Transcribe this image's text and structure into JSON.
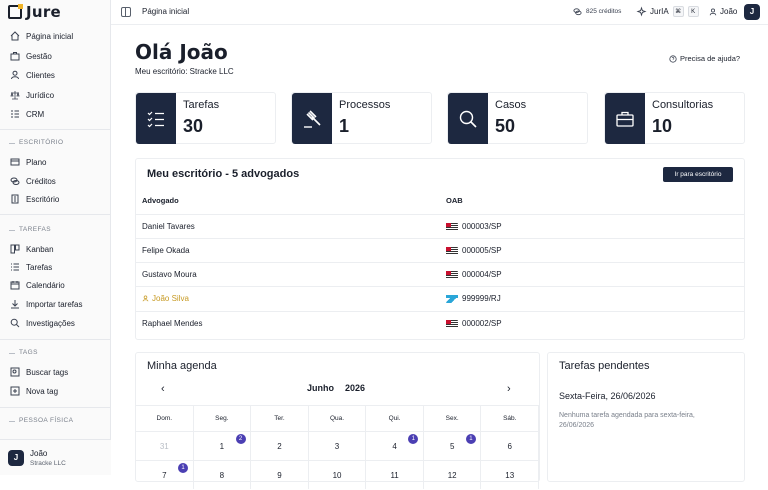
{
  "app": {
    "name": "Jure"
  },
  "sidebar": {
    "main": [
      {
        "label": "Página inicial",
        "icon": "home-icon"
      },
      {
        "label": "Gestão",
        "icon": "briefcase-icon"
      },
      {
        "label": "Clientes",
        "icon": "user-icon"
      },
      {
        "label": "Jurídico",
        "icon": "scale-icon"
      },
      {
        "label": "CRM",
        "icon": "crm-list-icon"
      }
    ],
    "sections": {
      "escritorio": "ESCRITÓRIO",
      "tarefas": "TAREFAS",
      "tags": "TAGS",
      "pessoa_fisica": "PESSOA FÍSICA"
    },
    "escritorio": [
      {
        "label": "Plano",
        "icon": "card-icon"
      },
      {
        "label": "Créditos",
        "icon": "coins-icon"
      },
      {
        "label": "Escritório",
        "icon": "building-icon"
      }
    ],
    "tarefas": [
      {
        "label": "Kanban",
        "icon": "kanban-icon"
      },
      {
        "label": "Tarefas",
        "icon": "list-icon"
      },
      {
        "label": "Calendário",
        "icon": "calendar-icon"
      },
      {
        "label": "Importar tarefas",
        "icon": "download-icon"
      },
      {
        "label": "Investigações",
        "icon": "search-icon"
      }
    ],
    "tags": [
      {
        "label": "Buscar tags",
        "icon": "tag-search-icon"
      },
      {
        "label": "Nova tag",
        "icon": "tag-plus-icon"
      }
    ],
    "user": {
      "initial": "J",
      "name": "João",
      "firm": "Stracke LLC"
    }
  },
  "topbar": {
    "title": "Página inicial",
    "credits": "825 créditos",
    "jur_ia": "JurIA",
    "kbd1": "⌘",
    "kbd2": "K",
    "user": "João",
    "avatar": "J"
  },
  "main": {
    "greeting": "Olá João",
    "firm_line": "Meu escritório: Stracke LLC",
    "help": "Precisa de ajuda?",
    "stats": [
      {
        "label": "Tarefas",
        "value": "30"
      },
      {
        "label": "Processos",
        "value": "1"
      },
      {
        "label": "Casos",
        "value": "50"
      },
      {
        "label": "Consultorias",
        "value": "10"
      }
    ],
    "office": {
      "title": "Meu escritório - 5 advogados",
      "button": "Ir para escritório",
      "col_lawyer": "Advogado",
      "col_oab": "OAB",
      "rows": [
        {
          "name": "Daniel Tavares",
          "oab": "000003/SP"
        },
        {
          "name": "Felipe Okada",
          "oab": "000005/SP"
        },
        {
          "name": "Gustavo Moura",
          "oab": "000004/SP"
        },
        {
          "name": "João Silva",
          "oab": "999999/RJ"
        },
        {
          "name": "Raphael Mendes",
          "oab": "000002/SP"
        }
      ]
    },
    "agenda": {
      "title": "Minha agenda",
      "prev": "‹",
      "next": "›",
      "month": "Junho",
      "year": "2026",
      "weekdays": [
        "Dom.",
        "Seg.",
        "Ter.",
        "Qua.",
        "Qui.",
        "Sex.",
        "Sáb."
      ],
      "week1": [
        "31",
        "1",
        "2",
        "3",
        "4",
        "5",
        "6"
      ],
      "week1_badges": [
        "",
        "2",
        "",
        "",
        "1",
        "1",
        ""
      ],
      "week2": [
        "7",
        "8",
        "9",
        "10",
        "11",
        "12",
        "13"
      ],
      "week2_badges": [
        "1",
        "",
        "",
        "",
        "",
        "",
        ""
      ]
    },
    "pending": {
      "title": "Tarefas pendentes",
      "date": "Sexta-Feira, 26/06/2026",
      "empty": "Nenhuma tarefa agendada para sexta-feira, 26/06/2026"
    }
  }
}
